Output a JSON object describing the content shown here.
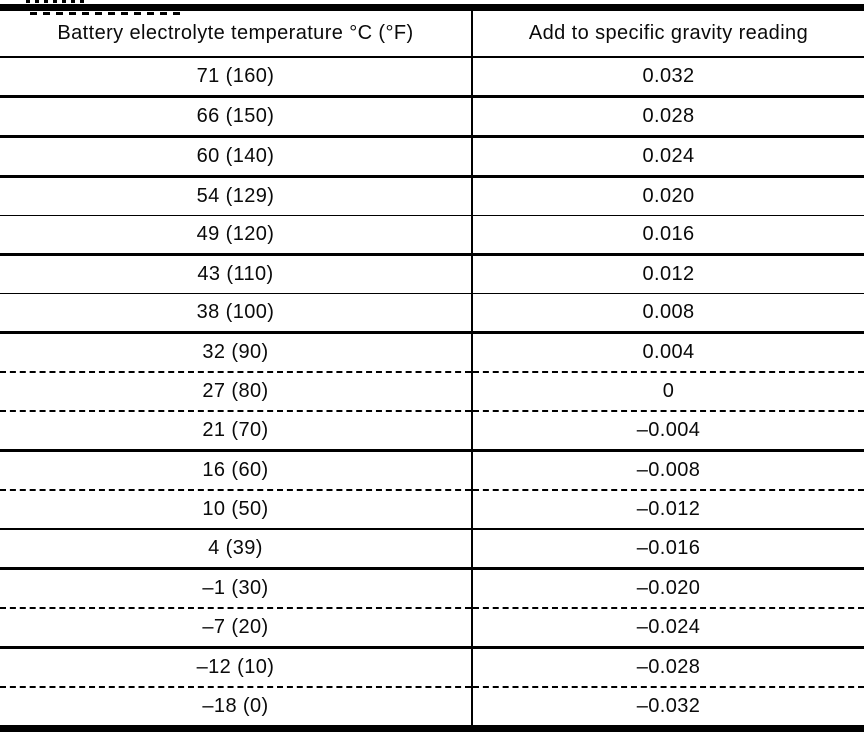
{
  "document": {
    "kind": "scanned battery electrolyte temperature correction table",
    "colors": {
      "line": "#000000",
      "text": "#0a0a0a",
      "background": "#ffffff"
    },
    "table": {
      "header": {
        "temperature": "Battery electrolyte temperature °C (°F)",
        "correction": "Add to specific gravity reading"
      },
      "rows": [
        {
          "temp": "71 (160)",
          "add": "0.032"
        },
        {
          "temp": "66 (150)",
          "add": "0.028"
        },
        {
          "temp": "60 (140)",
          "add": "0.024"
        },
        {
          "temp": "54 (129)",
          "add": "0.020"
        },
        {
          "temp": "49 (120)",
          "add": "0.016"
        },
        {
          "temp": "43 (110)",
          "add": "0.012"
        },
        {
          "temp": "38 (100)",
          "add": "0.008"
        },
        {
          "temp": "32 (90)",
          "add": "0.004"
        },
        {
          "temp": "27 (80)",
          "add": "0"
        },
        {
          "temp": "21 (70)",
          "add": "–0.004"
        },
        {
          "temp": "16 (60)",
          "add": "–0.008"
        },
        {
          "temp": "10 (50)",
          "add": "–0.012"
        },
        {
          "temp": "4 (39)",
          "add": "–0.016"
        },
        {
          "temp": "–1 (30)",
          "add": "–0.020"
        },
        {
          "temp": "–7 (20)",
          "add": "–0.024"
        },
        {
          "temp": "–12 (10)",
          "add": "–0.028"
        },
        {
          "temp": "–18 (0)",
          "add": "–0.032"
        }
      ]
    }
  }
}
